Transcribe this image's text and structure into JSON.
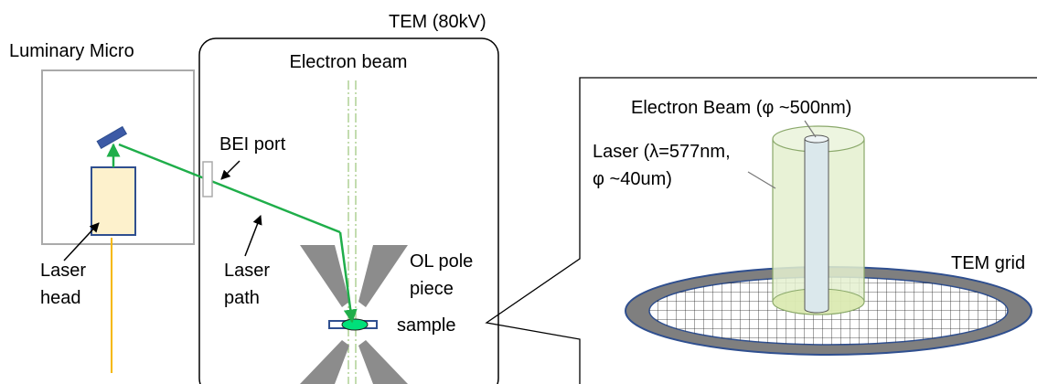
{
  "tem_label": "TEM (80kV)",
  "luminary_label": "Luminary Micro",
  "electron_beam_label": "Electron beam",
  "bei_port_label": "BEI port",
  "laser_head_label": [
    "Laser",
    "head"
  ],
  "laser_path_label": [
    "Laser",
    "path"
  ],
  "pole_piece_label": [
    "OL pole",
    "piece"
  ],
  "sample_label": "sample",
  "zoom": {
    "electron_beam_label": "Electron Beam (φ ~500nm)",
    "laser_label": [
      "Laser (λ=577nm,",
      "φ ~40um)"
    ],
    "grid_label": "TEM grid"
  }
}
